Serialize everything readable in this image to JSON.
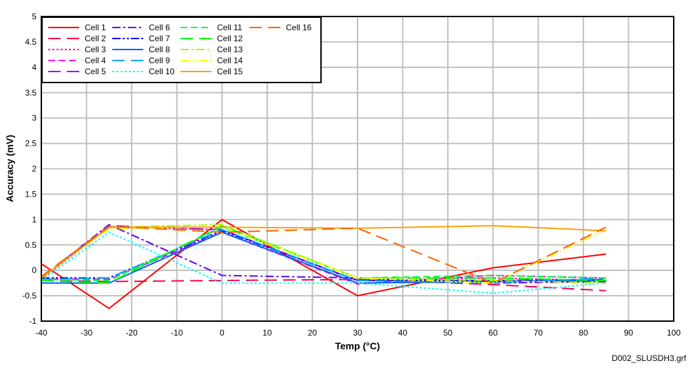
{
  "chart_data": {
    "type": "line",
    "title": "",
    "xlabel": "Temp (°C)",
    "ylabel": "Accuracy (mV)",
    "xlim": [
      -40,
      100
    ],
    "ylim": [
      -1,
      5
    ],
    "xticks": [
      -40,
      -30,
      -20,
      -10,
      0,
      10,
      20,
      30,
      40,
      50,
      60,
      70,
      80,
      90,
      100
    ],
    "yticks": [
      -1,
      -0.5,
      0,
      0.5,
      1,
      1.5,
      2,
      2.5,
      3,
      3.5,
      4,
      4.5,
      5
    ],
    "grid": true,
    "legend_position": "top-left",
    "x": [
      -40,
      -25,
      0,
      30,
      60,
      85
    ],
    "series": [
      {
        "name": "Cell 1",
        "color": "#ff0000",
        "style": "solid",
        "values": [
          0.13,
          -0.75,
          1.0,
          -0.5,
          0.05,
          0.32
        ]
      },
      {
        "name": "Cell 2",
        "color": "#ff0050",
        "style": "longdash",
        "values": [
          -0.2,
          -0.22,
          -0.2,
          -0.18,
          -0.28,
          -0.4
        ]
      },
      {
        "name": "Cell 3",
        "color": "#ff00a0",
        "style": "dot",
        "values": [
          -0.17,
          0.85,
          0.8,
          -0.2,
          -0.15,
          -0.2
        ]
      },
      {
        "name": "Cell 4",
        "color": "#ff00ff",
        "style": "dash",
        "values": [
          -0.17,
          -0.18,
          0.75,
          -0.27,
          -0.1,
          -0.15
        ]
      },
      {
        "name": "Cell 5",
        "color": "#a000ff",
        "style": "longdash",
        "values": [
          -0.15,
          0.88,
          0.8,
          -0.2,
          -0.2,
          -0.18
        ]
      },
      {
        "name": "Cell 6",
        "color": "#6000ff",
        "style": "dashdot",
        "values": [
          -0.15,
          0.9,
          -0.1,
          -0.15,
          -0.25,
          -0.22
        ]
      },
      {
        "name": "Cell 7",
        "color": "#0000ff",
        "style": "dashdotdot",
        "values": [
          -0.15,
          -0.15,
          0.78,
          -0.2,
          -0.2,
          -0.2
        ]
      },
      {
        "name": "Cell 8",
        "color": "#0060ff",
        "style": "solid",
        "values": [
          -0.25,
          -0.25,
          0.75,
          -0.25,
          -0.22,
          -0.2
        ]
      },
      {
        "name": "Cell 9",
        "color": "#00a0ff",
        "style": "longdash",
        "values": [
          -0.18,
          -0.15,
          0.8,
          -0.2,
          -0.25,
          -0.15
        ]
      },
      {
        "name": "Cell 10",
        "color": "#00ffff",
        "style": "dot",
        "values": [
          -0.2,
          0.75,
          -0.25,
          -0.25,
          -0.45,
          -0.25
        ]
      },
      {
        "name": "Cell 11",
        "color": "#00ff40",
        "style": "dash",
        "values": [
          -0.18,
          -0.2,
          0.85,
          -0.15,
          -0.1,
          -0.15
        ]
      },
      {
        "name": "Cell 12",
        "color": "#00ff00",
        "style": "longdash",
        "values": [
          -0.2,
          -0.25,
          0.88,
          -0.15,
          -0.15,
          -0.2
        ]
      },
      {
        "name": "Cell 13",
        "color": "#a0ff00",
        "style": "dashdot",
        "values": [
          -0.15,
          0.85,
          0.9,
          -0.15,
          -0.2,
          -0.25
        ]
      },
      {
        "name": "Cell 14",
        "color": "#ffff00",
        "style": "dashdotdot",
        "values": [
          -0.12,
          0.82,
          0.85,
          -0.15,
          -0.25,
          0.8
        ]
      },
      {
        "name": "Cell 15",
        "color": "#ffa000",
        "style": "solid",
        "values": [
          -0.15,
          0.85,
          0.85,
          0.83,
          0.88,
          0.78
        ]
      },
      {
        "name": "Cell 16",
        "color": "#ff6000",
        "style": "longdash",
        "values": [
          -0.12,
          0.87,
          0.75,
          0.83,
          -0.25,
          0.85
        ]
      }
    ]
  },
  "footer": {
    "filename": "D002_SLUSDH3.grf"
  }
}
